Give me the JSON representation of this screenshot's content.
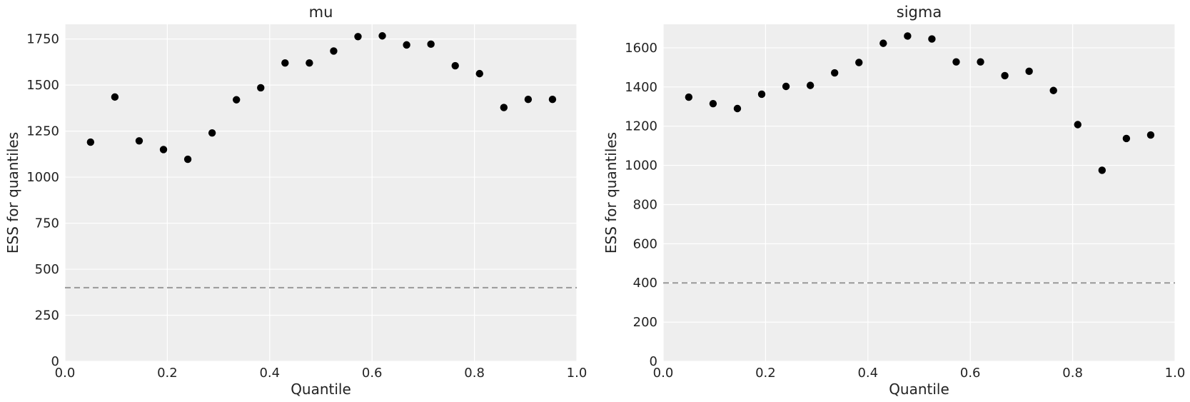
{
  "chart_data": [
    {
      "type": "scatter",
      "title": "mu",
      "xlabel": "Quantile",
      "ylabel": "ESS for quantiles",
      "xlim": [
        0.0,
        1.0
      ],
      "ylim": [
        0,
        1830
      ],
      "xticks": [
        0.0,
        0.2,
        0.4,
        0.6,
        0.8,
        1.0
      ],
      "xtick_labels": [
        "0.0",
        "0.2",
        "0.4",
        "0.6",
        "0.8",
        "1.0"
      ],
      "yticks": [
        0,
        250,
        500,
        750,
        1000,
        1250,
        1500,
        1750
      ],
      "ytick_labels": [
        "0",
        "250",
        "500",
        "750",
        "1000",
        "1250",
        "1500",
        "1750"
      ],
      "grid": true,
      "reference_line": 400,
      "x": [
        0.05,
        0.0975,
        0.145,
        0.1925,
        0.24,
        0.2875,
        0.335,
        0.3825,
        0.43,
        0.4775,
        0.525,
        0.5725,
        0.62,
        0.6675,
        0.715,
        0.7625,
        0.81,
        0.8575,
        0.905,
        0.9525
      ],
      "y": [
        1190,
        1435,
        1197,
        1150,
        1097,
        1240,
        1420,
        1485,
        1620,
        1620,
        1685,
        1763,
        1767,
        1718,
        1722,
        1605,
        1562,
        1378,
        1422,
        1422
      ]
    },
    {
      "type": "scatter",
      "title": "sigma",
      "xlabel": "Quantile",
      "ylabel": "ESS for quantiles",
      "xlim": [
        0.0,
        1.0
      ],
      "ylim": [
        0,
        1720
      ],
      "xticks": [
        0.0,
        0.2,
        0.4,
        0.6,
        0.8,
        1.0
      ],
      "xtick_labels": [
        "0.0",
        "0.2",
        "0.4",
        "0.6",
        "0.8",
        "1.0"
      ],
      "yticks": [
        0,
        200,
        400,
        600,
        800,
        1000,
        1200,
        1400,
        1600
      ],
      "ytick_labels": [
        "0",
        "200",
        "400",
        "600",
        "800",
        "1000",
        "1200",
        "1400",
        "1600"
      ],
      "grid": true,
      "reference_line": 400,
      "x": [
        0.05,
        0.0975,
        0.145,
        0.1925,
        0.24,
        0.2875,
        0.335,
        0.3825,
        0.43,
        0.4775,
        0.525,
        0.5725,
        0.62,
        0.6675,
        0.715,
        0.7625,
        0.81,
        0.8575,
        0.905,
        0.9525
      ],
      "y": [
        1348,
        1315,
        1290,
        1363,
        1403,
        1408,
        1472,
        1525,
        1623,
        1660,
        1645,
        1528,
        1528,
        1458,
        1480,
        1382,
        1208,
        975,
        1137,
        1155
      ]
    }
  ]
}
